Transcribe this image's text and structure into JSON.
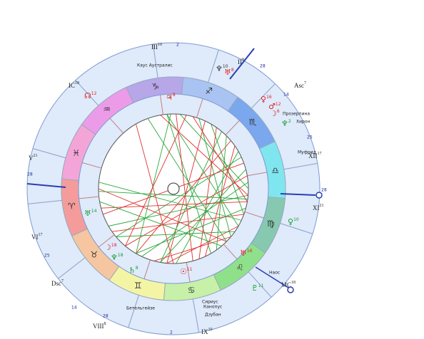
{
  "zodiac": [
    {
      "glyph": "♑",
      "color": "#b7a6e8"
    },
    {
      "glyph": "♐",
      "color": "#a9c4f2"
    },
    {
      "glyph": "♏",
      "color": "#7aa7ee"
    },
    {
      "glyph": "♎",
      "color": "#7fe6f0"
    },
    {
      "glyph": "♍",
      "color": "#86c9b0"
    },
    {
      "glyph": "♌",
      "color": "#8fe08a"
    },
    {
      "glyph": "♋",
      "color": "#c7f0a8"
    },
    {
      "glyph": "♊",
      "color": "#f3f5a5"
    },
    {
      "glyph": "♉",
      "color": "#f6c6a0"
    },
    {
      "glyph": "♈",
      "color": "#f49c9c"
    },
    {
      "glyph": "♓",
      "color": "#f4a5d8"
    },
    {
      "glyph": "♒",
      "color": "#ec9be8"
    }
  ],
  "houses": [
    {
      "label": "III",
      "degree": "10"
    },
    {
      "label": "II",
      "degree": "8"
    },
    {
      "label": "IC",
      "degree": "18"
    },
    {
      "label": "V",
      "degree": "21"
    },
    {
      "label": "VI",
      "degree": "17"
    },
    {
      "label": "Dsc",
      "degree": "7"
    },
    {
      "label": "VIII",
      "degree": "8"
    },
    {
      "label": "IX",
      "degree": "10"
    },
    {
      "label": "XII",
      "degree": "17"
    },
    {
      "label": "XI",
      "degree": "21"
    },
    {
      "label": "MC",
      "degree": "18"
    },
    {
      "label": "Asc",
      "degree": "7"
    }
  ],
  "degrees": [
    "2",
    "28",
    "14",
    "25",
    "28",
    "28",
    "25",
    "14",
    "28",
    "2"
  ],
  "stars": [
    "Кауc Аустралис",
    "Прозерпина",
    "Хирон",
    "Муфрид",
    "Наос",
    "Бетельгейзе",
    "Сириус",
    "Канопус",
    "Дзубан"
  ],
  "planets": [
    {
      "glyph": "♆",
      "degree": "10"
    },
    {
      "glyph": "♅",
      "degree": "8"
    },
    {
      "glyph": "☊",
      "degree": "12"
    },
    {
      "glyph": "♀",
      "degree": "16"
    },
    {
      "glyph": "♂",
      "degree": "12"
    },
    {
      "glyph": "☽",
      "degree": "6"
    },
    {
      "glyph": "♆",
      "degree": "2"
    },
    {
      "glyph": "♃",
      "degree": "8"
    },
    {
      "glyph": "♅",
      "degree": "14"
    },
    {
      "glyph": "♅",
      "degree": "16"
    },
    {
      "glyph": "☽",
      "degree": "18"
    },
    {
      "glyph": "♆",
      "degree": "18"
    },
    {
      "glyph": "♇",
      "degree": "11"
    },
    {
      "glyph": "☉",
      "degree": "11"
    },
    {
      "glyph": "♄",
      "degree": "8"
    },
    {
      "glyph": "♀",
      "degree": "10"
    }
  ]
}
